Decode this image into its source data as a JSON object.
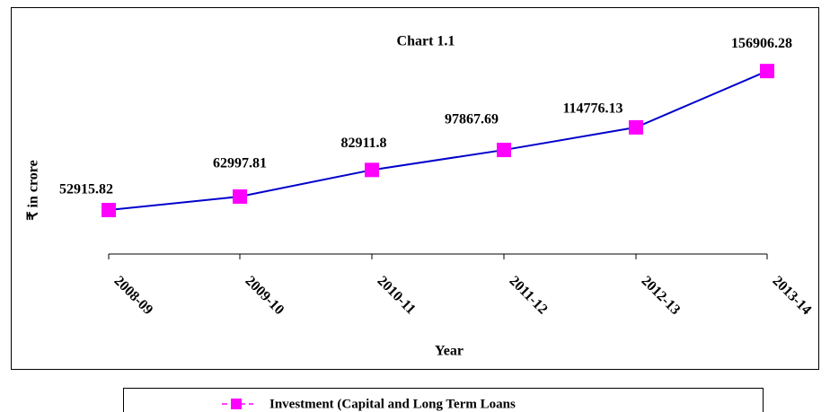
{
  "chart_data": {
    "type": "line",
    "title": "Chart 1.1",
    "x_label": "Year",
    "y_label": "₹ in crore",
    "categories": [
      "2008-09",
      "2009-10",
      "2010-11",
      "2011-12",
      "2012-13",
      "2013-14"
    ],
    "series": [
      {
        "name": "Investment (Capital and Long Term Loans",
        "color": "#0000cc",
        "marker_color": "#ff00ff",
        "values": [
          52915.82,
          62997.81,
          82911.8,
          97867.69,
          114776.13,
          156906.28
        ]
      }
    ],
    "ylim": [
      20000,
      200000
    ],
    "legend": "bottom"
  }
}
